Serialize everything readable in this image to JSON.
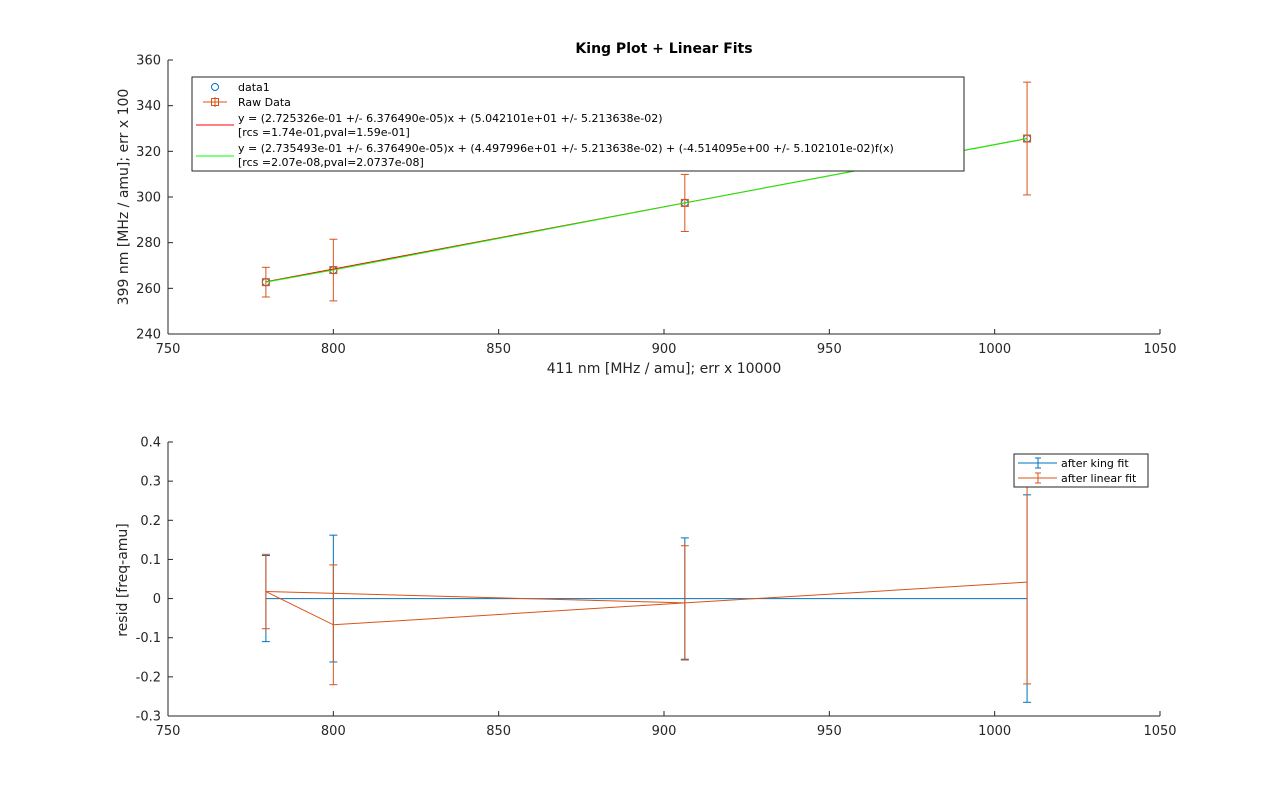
{
  "colors": {
    "blue": "#0072bd",
    "orange": "#d95319",
    "red": "#ff0000",
    "green": "#00ff00",
    "axis": "#262626"
  },
  "chart_data": [
    {
      "type": "scatter",
      "title": "King Plot + Linear Fits",
      "xlabel": "411 nm [MHz / amu]; err x 10000",
      "ylabel": "399 nm [MHz / amu]; err x 100",
      "xlim": [
        750,
        1050
      ],
      "ylim": [
        240,
        360
      ],
      "x_ticks": [
        "750",
        "800",
        "850",
        "900",
        "950",
        "1000",
        "1050"
      ],
      "y_ticks": [
        "240",
        "260",
        "280",
        "300",
        "320",
        "340",
        "360"
      ],
      "grid": false,
      "legend_position": "top",
      "series": [
        {
          "name": "data1",
          "kind": "markers-circle",
          "color": "#0072bd",
          "x": [
            779.6,
            800.0,
            906.3,
            1009.8
          ],
          "y": [
            262.7,
            268.0,
            297.4,
            325.6
          ]
        },
        {
          "name": "Raw Data",
          "kind": "errorbar-square",
          "color": "#d95319",
          "x": [
            779.6,
            800.0,
            906.3,
            1009.8
          ],
          "y": [
            262.7,
            268.0,
            297.4,
            325.6
          ],
          "yerr": [
            6.5,
            13.5,
            12.5,
            24.7
          ]
        },
        {
          "name": "y = (2.725326e-01 +/- 6.376490e-05)x + (5.042101e+01 +/- 5.213638e-02)",
          "name_line2": "[rcs =1.74e-01,pval=1.59e-01]",
          "kind": "line",
          "color": "#ff0000",
          "x": [
            779.6,
            1009.8
          ],
          "y": [
            262.9,
            325.6
          ]
        },
        {
          "name": "y = (2.735493e-01 +/- 6.376490e-05)x + (4.497996e+01 +/- 5.213638e-02) + (-4.514095e+00 +/- 5.102101e-02)f(x)",
          "name_line2": "[rcs =2.07e-08,pval=2.0737e-08]",
          "kind": "line",
          "color": "#00ff00",
          "x": [
            779.6,
            800.0,
            906.3,
            1009.8
          ],
          "y": [
            262.7,
            268.0,
            297.4,
            325.6
          ]
        }
      ]
    },
    {
      "type": "line",
      "title": "",
      "xlabel": "",
      "ylabel": "resid [freq-amu]",
      "xlim": [
        750,
        1050
      ],
      "ylim": [
        -0.3,
        0.4
      ],
      "x_ticks": [
        "750",
        "800",
        "850",
        "900",
        "950",
        "1000",
        "1050"
      ],
      "y_ticks": [
        "-0.3",
        "-0.2",
        "-0.1",
        "0",
        "0.1",
        "0.2",
        "0.3",
        "0.4"
      ],
      "grid": false,
      "legend_position": "top-right",
      "series": [
        {
          "name": "after king fit",
          "kind": "errorbar-line",
          "color": "#0072bd",
          "x": [
            779.6,
            800.0,
            906.3,
            1009.8
          ],
          "y": [
            0.0,
            0.0,
            0.0,
            0.0
          ],
          "yerr": [
            0.11,
            0.162,
            0.155,
            0.265
          ]
        },
        {
          "name": "after linear fit",
          "kind": "errorbar-line",
          "color": "#d95319",
          "x": [
            779.6,
            800.0,
            906.3,
            1009.8
          ],
          "y": [
            0.018,
            -0.067,
            -0.011,
            0.042
          ],
          "yerr": [
            0.095,
            0.153,
            0.146,
            0.26
          ]
        },
        {
          "name": "",
          "kind": "line",
          "color": "#d95319",
          "x": [
            779.6,
            906.3
          ],
          "y": [
            0.018,
            -0.011
          ]
        }
      ]
    }
  ]
}
